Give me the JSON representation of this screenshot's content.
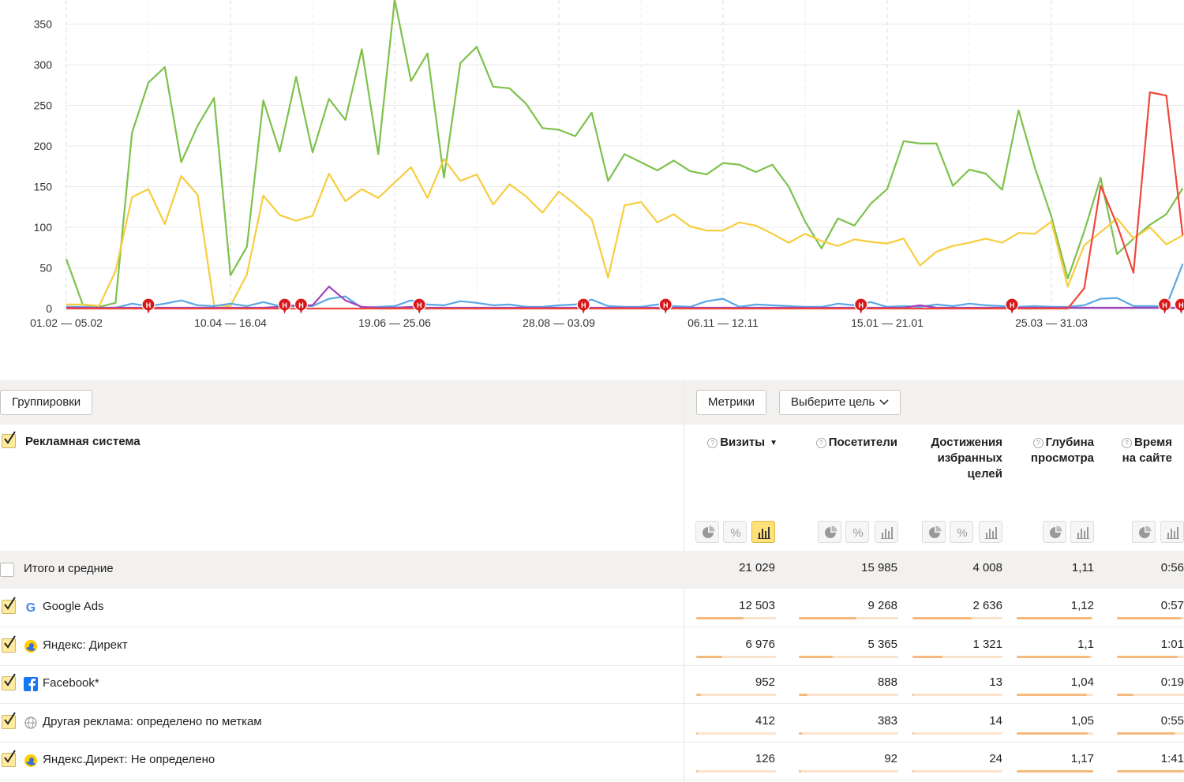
{
  "chart_data": {
    "type": "line",
    "y_ticks": [
      "0",
      "50",
      "100",
      "150",
      "200",
      "250",
      "300",
      "350"
    ],
    "ylim": [
      0,
      380
    ],
    "x_labels": [
      "01.02 — 05.02",
      "10.04 — 16.04",
      "19.06 — 25.06",
      "28.08 — 03.09",
      "06.11 — 12.11",
      "15.01 — 21.01",
      "25.03 — 31.03"
    ],
    "x_label_index": [
      0,
      10,
      20,
      30,
      40,
      50,
      60
    ],
    "grid": true,
    "series": [
      {
        "color": "#7dc14b",
        "values": [
          61,
          5,
          2,
          7,
          216,
          278,
          297,
          180,
          225,
          259,
          41,
          76,
          256,
          193,
          285,
          192,
          258,
          232,
          319,
          190,
          380,
          280,
          314,
          161,
          302,
          322,
          273,
          271,
          252,
          222,
          220,
          212,
          241,
          157,
          190,
          180,
          170,
          182,
          169,
          165,
          179,
          177,
          168,
          177,
          150,
          107,
          74,
          111,
          102,
          129,
          147,
          206,
          203,
          203,
          151,
          171,
          166,
          146,
          244,
          173,
          113,
          37,
          95,
          161,
          67,
          86,
          103,
          116,
          148
        ]
      },
      {
        "color": "#f7cd3e",
        "values": [
          5,
          5,
          3,
          46,
          137,
          147,
          104,
          163,
          140,
          4,
          3,
          42,
          139,
          115,
          108,
          114,
          166,
          132,
          147,
          136,
          155,
          174,
          136,
          184,
          157,
          165,
          128,
          153,
          138,
          118,
          144,
          128,
          110,
          38,
          127,
          131,
          106,
          116,
          101,
          96,
          96,
          106,
          102,
          92,
          81,
          92,
          83,
          77,
          85,
          82,
          80,
          86,
          53,
          70,
          77,
          81,
          86,
          81,
          93,
          92,
          107,
          27,
          78,
          94,
          111,
          86,
          100,
          79,
          90
        ]
      },
      {
        "color": "#5ba8e5",
        "values": [
          2,
          2,
          1,
          1,
          6,
          3,
          6,
          10,
          4,
          3,
          6,
          3,
          8,
          3,
          3,
          3,
          12,
          15,
          1,
          2,
          3,
          10,
          5,
          4,
          9,
          7,
          4,
          5,
          2,
          2,
          4,
          5,
          11,
          3,
          2,
          2,
          5,
          3,
          2,
          9,
          12,
          2,
          5,
          4,
          3,
          2,
          2,
          6,
          4,
          8,
          2,
          3,
          2,
          5,
          3,
          6,
          4,
          3,
          2,
          3,
          2,
          2,
          4,
          12,
          13,
          3,
          3,
          3,
          55
        ]
      },
      {
        "color": "#a043ba",
        "values": [
          1,
          1,
          1,
          1,
          1,
          1,
          1,
          1,
          1,
          1,
          1,
          1,
          1,
          2,
          4,
          4,
          27,
          10,
          2,
          1,
          1,
          2,
          1,
          1,
          1,
          1,
          1,
          1,
          1,
          1,
          1,
          1,
          1,
          1,
          1,
          1,
          1,
          1,
          1,
          1,
          1,
          1,
          1,
          1,
          1,
          1,
          1,
          1,
          1,
          1,
          1,
          1,
          4,
          1,
          1,
          1,
          1,
          1,
          1,
          1,
          1,
          1,
          1,
          1,
          1,
          1,
          1,
          1,
          1
        ]
      },
      {
        "color": "#f0473a",
        "values": [
          0,
          0,
          0,
          0,
          0,
          0,
          0,
          0,
          0,
          0,
          0,
          0,
          0,
          0,
          0,
          0,
          0,
          0,
          0,
          0,
          0,
          0,
          0,
          0,
          0,
          0,
          0,
          0,
          0,
          0,
          0,
          0,
          0,
          0,
          0,
          0,
          0,
          0,
          0,
          0,
          0,
          0,
          0,
          0,
          0,
          0,
          0,
          0,
          0,
          0,
          0,
          0,
          0,
          0,
          0,
          0,
          0,
          0,
          0,
          0,
          0,
          0,
          25,
          151,
          103,
          44,
          266,
          262,
          90
        ]
      }
    ],
    "marker_label": "Н",
    "marker_index": [
      5,
      13.3,
      14.3,
      21.5,
      31.5,
      36.5,
      48.4,
      57.6,
      66.9,
      67.9
    ]
  },
  "toolbar": {
    "groupings": "Группировки",
    "metrics": "Метрики",
    "goal_select": "Выберите цель"
  },
  "table": {
    "dimension_header": "Рекламная система",
    "columns": [
      {
        "lines": [
          "Визиты"
        ],
        "help": true,
        "sorted": true,
        "sort_mark": "▼"
      },
      {
        "lines": [
          "Посетители"
        ],
        "help": true
      },
      {
        "lines": [
          "Достижения",
          "избранных",
          "целей"
        ],
        "help": false
      },
      {
        "lines": [
          "Глубина",
          "просмотра"
        ],
        "help": true
      },
      {
        "lines": [
          "Время",
          "на сайте"
        ],
        "help": true
      }
    ],
    "help_mark": "?",
    "total": {
      "label": "Итого и средние",
      "values": [
        "21 029",
        "15 985",
        "4 008",
        "1,11",
        "0:56"
      ]
    },
    "rows": [
      {
        "label": "Google Ads",
        "icon": "google-icon",
        "values": [
          "12 503",
          "9 268",
          "2 636",
          "1,12",
          "0:57"
        ],
        "share": [
          0.595,
          0.58,
          0.66,
          0.98,
          0.95
        ]
      },
      {
        "label": "Яндекс: Директ",
        "icon": "yandex-direct-icon",
        "values": [
          "6 976",
          "5 365",
          "1 321",
          "1,1",
          "1:01"
        ],
        "share": [
          0.33,
          0.34,
          0.33,
          0.96,
          0.9
        ]
      },
      {
        "label": "Facebook*",
        "icon": "facebook-icon",
        "values": [
          "952",
          "888",
          "13",
          "1,04",
          "0:19"
        ],
        "share": [
          0.06,
          0.09,
          0.01,
          0.92,
          0.25
        ]
      },
      {
        "label": "Другая реклама: определено по меткам",
        "icon": "globe-icon",
        "values": [
          "412",
          "383",
          "14",
          "1,05",
          "0:55"
        ],
        "share": [
          0.02,
          0.03,
          0.01,
          0.93,
          0.87
        ]
      },
      {
        "label": "Яндекс.Директ: Не определено",
        "icon": "yandex-direct-icon",
        "values": [
          "126",
          "92",
          "24",
          "1,17",
          "1:41"
        ],
        "share": [
          0.01,
          0.01,
          0.01,
          1.0,
          1.0
        ]
      }
    ]
  }
}
